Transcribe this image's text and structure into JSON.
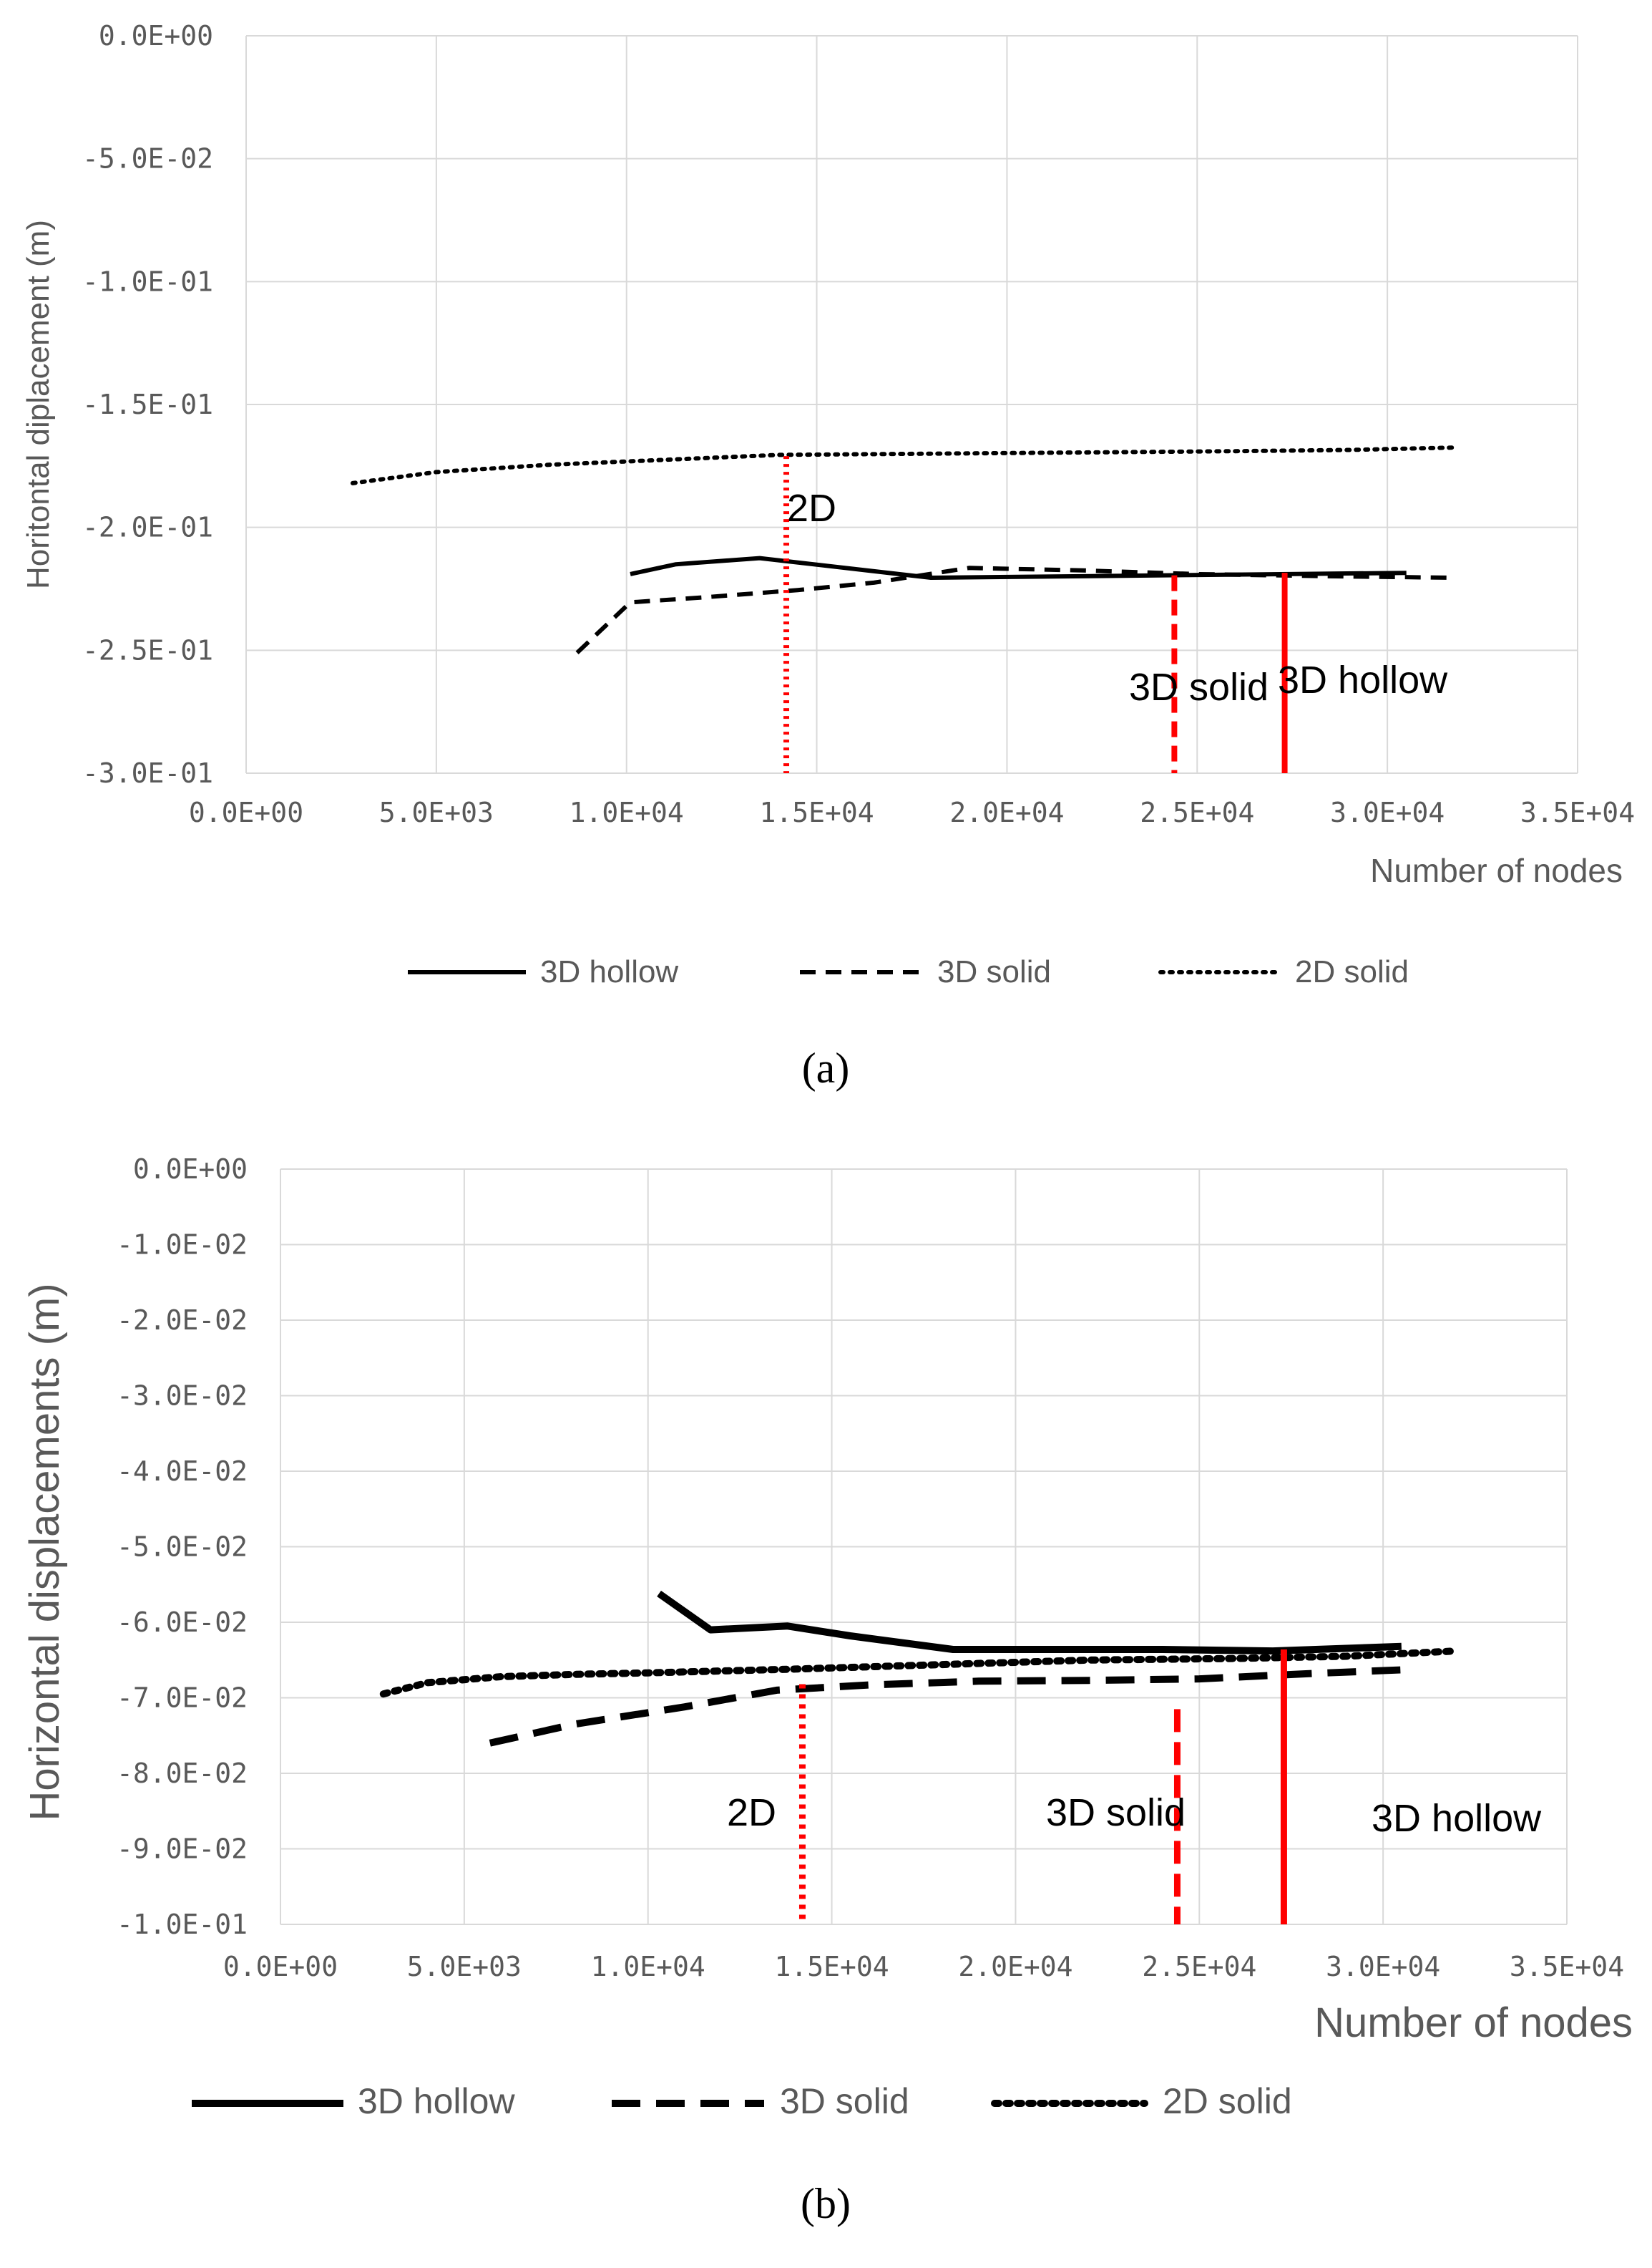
{
  "chart_data": [
    {
      "type": "line",
      "panel_label": "(a)",
      "xlabel": "Number of nodes",
      "ylabel": "Horitontal diplacement (m)",
      "xlim": [
        0,
        35000
      ],
      "ylim": [
        -0.3,
        0
      ],
      "grid": true,
      "legend_position": "bottom",
      "x_ticks": [
        0,
        5000,
        10000,
        15000,
        20000,
        25000,
        30000,
        35000
      ],
      "x_tick_labels": [
        "0.0E+00",
        "5.0E+03",
        "1.0E+04",
        "1.5E+04",
        "2.0E+04",
        "2.5E+04",
        "3.0E+04",
        "3.5E+04"
      ],
      "y_ticks": [
        0,
        -0.05,
        -0.1,
        -0.15,
        -0.2,
        -0.25,
        -0.3
      ],
      "y_tick_labels": [
        "0.0E+00",
        "-5.0E-02",
        "-1.0E-01",
        "-1.5E-01",
        "-2.0E-01",
        "-2.5E-01",
        "-3.0E-01"
      ],
      "series": [
        {
          "name": "3D hollow",
          "style": "solid",
          "x": [
            10100,
            11300,
            13500,
            18000,
            30500
          ],
          "y": [
            -0.219,
            -0.215,
            -0.2125,
            -0.2205,
            -0.2185
          ]
        },
        {
          "name": "3D solid",
          "style": "dashed",
          "x": [
            8700,
            10100,
            12000,
            14500,
            16500,
            19000,
            22000,
            25000,
            29000,
            31800
          ],
          "y": [
            -0.251,
            -0.2305,
            -0.2285,
            -0.2255,
            -0.2225,
            -0.2165,
            -0.2175,
            -0.219,
            -0.22,
            -0.2205
          ]
        },
        {
          "name": "2D solid",
          "style": "dotted",
          "x": [
            2800,
            5000,
            8000,
            11000,
            14000,
            18000,
            22000,
            26000,
            29000,
            31800
          ],
          "y": [
            -0.182,
            -0.1775,
            -0.1745,
            -0.1725,
            -0.1705,
            -0.17,
            -0.1695,
            -0.169,
            -0.1685,
            -0.1675
          ]
        }
      ],
      "markers": [
        {
          "label": "2D",
          "x": 14200,
          "y_from": -0.171,
          "y_to": -0.3,
          "style": "dotted",
          "color": "#ff0000"
        },
        {
          "label": "3D solid",
          "x": 24400,
          "y_from": -0.2195,
          "y_to": -0.3,
          "style": "dashed",
          "color": "#ff0000"
        },
        {
          "label": "3D hollow",
          "x": 27300,
          "y_from": -0.2185,
          "y_to": -0.3,
          "style": "solid",
          "color": "#ff0000"
        }
      ]
    },
    {
      "type": "line",
      "panel_label": "(b)",
      "xlabel": "Number of nodes",
      "ylabel": "Horizontal displacements (m)",
      "xlim": [
        0,
        35000
      ],
      "ylim": [
        -0.1,
        0
      ],
      "grid": true,
      "legend_position": "bottom",
      "x_ticks": [
        0,
        5000,
        10000,
        15000,
        20000,
        25000,
        30000,
        35000
      ],
      "x_tick_labels": [
        "0.0E+00",
        "5.0E+03",
        "1.0E+04",
        "1.5E+04",
        "2.0E+04",
        "2.5E+04",
        "3.0E+04",
        "3.5E+04"
      ],
      "y_ticks": [
        0,
        -0.01,
        -0.02,
        -0.03,
        -0.04,
        -0.05,
        -0.06,
        -0.07,
        -0.08,
        -0.09,
        -0.1
      ],
      "y_tick_labels": [
        "0.0E+00",
        "-1.0E-02",
        "-2.0E-02",
        "-3.0E-02",
        "-4.0E-02",
        "-5.0E-02",
        "-6.0E-02",
        "-7.0E-02",
        "-8.0E-02",
        "-9.0E-02",
        "-1.0E-01"
      ],
      "series": [
        {
          "name": "3D hollow",
          "style": "solid",
          "x": [
            10300,
            11700,
            13800,
            15500,
            18300,
            24000,
            27000,
            30500
          ],
          "y": [
            -0.0562,
            -0.061,
            -0.0605,
            -0.0618,
            -0.0636,
            -0.0636,
            -0.0638,
            -0.0632
          ]
        },
        {
          "name": "3D solid",
          "style": "dashed",
          "x": [
            5700,
            8000,
            11000,
            13500,
            16000,
            19000,
            22000,
            25000,
            28000,
            30500
          ],
          "y": [
            -0.076,
            -0.0735,
            -0.0712,
            -0.069,
            -0.0683,
            -0.0678,
            -0.0677,
            -0.0675,
            -0.0668,
            -0.0663
          ]
        },
        {
          "name": "2D solid",
          "style": "dotted",
          "x": [
            2800,
            4000,
            6000,
            8000,
            10000,
            14000,
            18000,
            22000,
            26000,
            29000,
            32000
          ],
          "y": [
            -0.0695,
            -0.068,
            -0.0672,
            -0.0669,
            -0.0667,
            -0.0662,
            -0.0656,
            -0.065,
            -0.0648,
            -0.0645,
            -0.0638
          ]
        }
      ],
      "markers": [
        {
          "label": "2D",
          "x": 14200,
          "y_from": -0.0682,
          "y_to": -0.1,
          "style": "dotted",
          "color": "#ff0000"
        },
        {
          "label": "3D solid",
          "x": 24400,
          "y_from": -0.0715,
          "y_to": -0.1,
          "style": "dashed",
          "color": "#ff0000"
        },
        {
          "label": "3D hollow",
          "x": 27300,
          "y_from": -0.0636,
          "y_to": -0.1,
          "style": "solid",
          "color": "#ff0000"
        }
      ]
    }
  ],
  "colors": {
    "grid": "#d9d9d9",
    "series": "#000000",
    "marker": "#ff0000",
    "text": "#595959"
  }
}
